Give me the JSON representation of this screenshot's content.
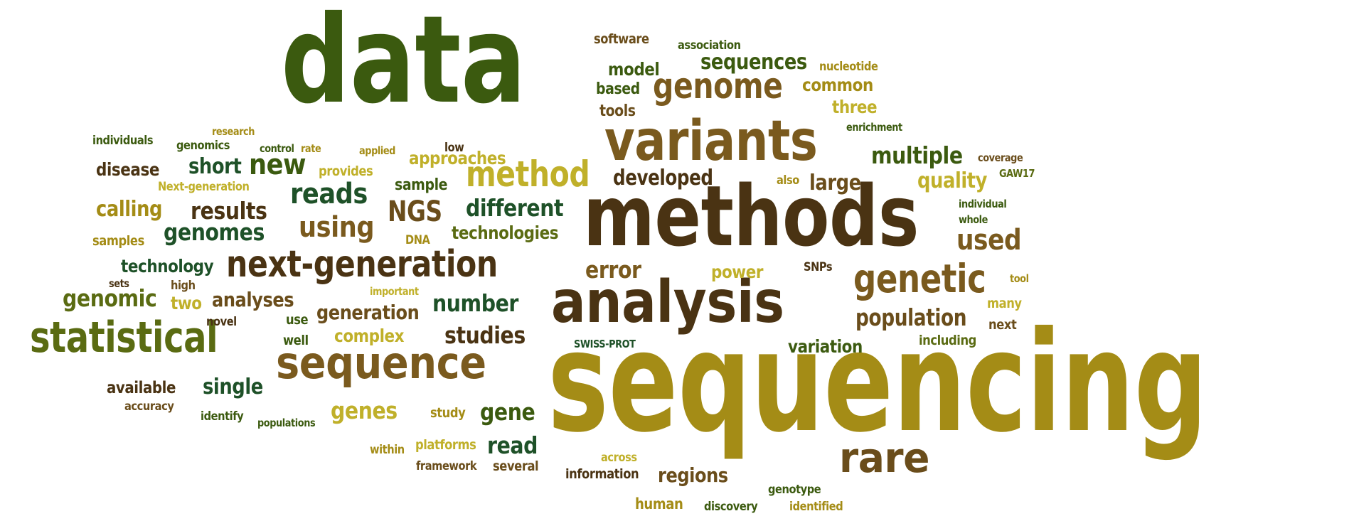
{
  "palette": {
    "dark_green": "#3b5a0f",
    "dark_brown": "#4a3313",
    "medium_brown": "#7a5a1e",
    "olive_gold": "#a48c16",
    "yellow_olive": "#c0b02a",
    "deep_green": "#1e5128",
    "brown": "#6a4d1b",
    "olive_green": "#5a6b12"
  },
  "words": [
    "data",
    "sequencing",
    "methods",
    "analysis",
    "variants",
    "sequence",
    "next-generation",
    "statistical",
    "genetic",
    "genome",
    "method",
    "rare",
    "sequences",
    "reads",
    "using",
    "NGS",
    "new",
    "multiple",
    "used",
    "different",
    "results",
    "genomes",
    "short",
    "number",
    "population",
    "studies",
    "genes",
    "gene",
    "read",
    "regions",
    "error",
    "developed",
    "quality",
    "large",
    "genomic",
    "analyses",
    "generation",
    "technologies",
    "calling",
    "single",
    "technology",
    "approaches",
    "complex",
    "power",
    "variation",
    "disease",
    "sample",
    "common",
    "model",
    "based",
    "tools",
    "three",
    "software",
    "association",
    "nucleotide",
    "enrichment",
    "coverage",
    "GAW17",
    "individual",
    "whole",
    "tool",
    "many",
    "next",
    "including",
    "SNPs",
    "also",
    "individuals",
    "research",
    "genomics",
    "control",
    "rate",
    "applied",
    "low",
    "Next-generation",
    "provides",
    "DNA",
    "samples",
    "sets",
    "high",
    "two",
    "important",
    "novel",
    "use",
    "well",
    "SWISS-PROT",
    "available",
    "accuracy",
    "identify",
    "populations",
    "study",
    "within",
    "platforms",
    "framework",
    "several",
    "across",
    "information",
    "genotype",
    "human",
    "discovery",
    "identified"
  ]
}
